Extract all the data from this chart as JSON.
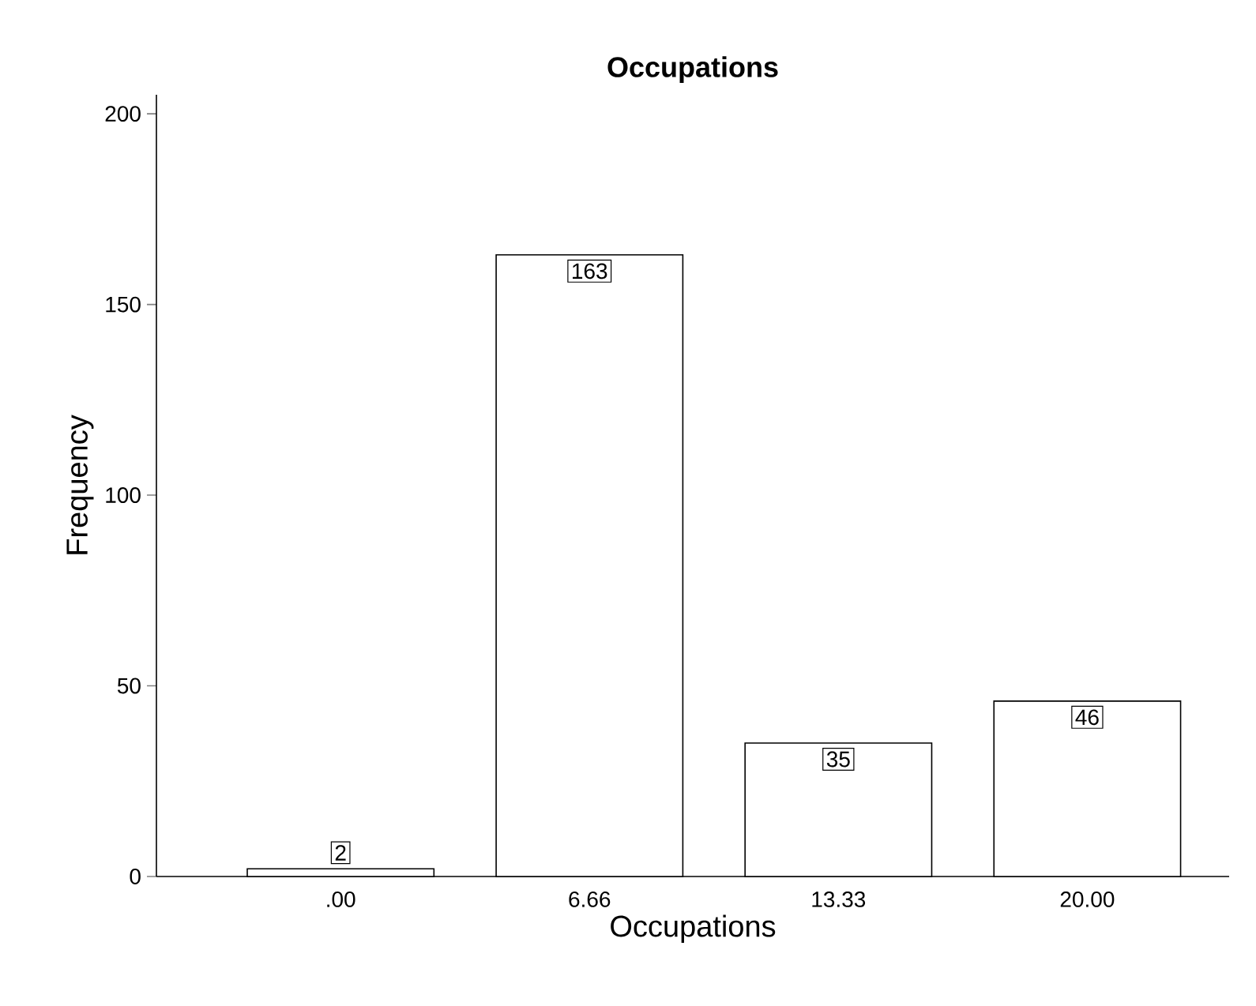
{
  "chart_data": {
    "type": "bar",
    "title": "Occupations",
    "xlabel": "Occupations",
    "ylabel": "Frequency",
    "categories": [
      ".00",
      "6.66",
      "13.33",
      "20.00"
    ],
    "values": [
      2,
      163,
      35,
      46
    ],
    "color": "#ffffff",
    "ylim": [
      0,
      205
    ],
    "yticks": [
      0,
      50,
      100,
      150,
      200
    ],
    "data_labels": true
  }
}
